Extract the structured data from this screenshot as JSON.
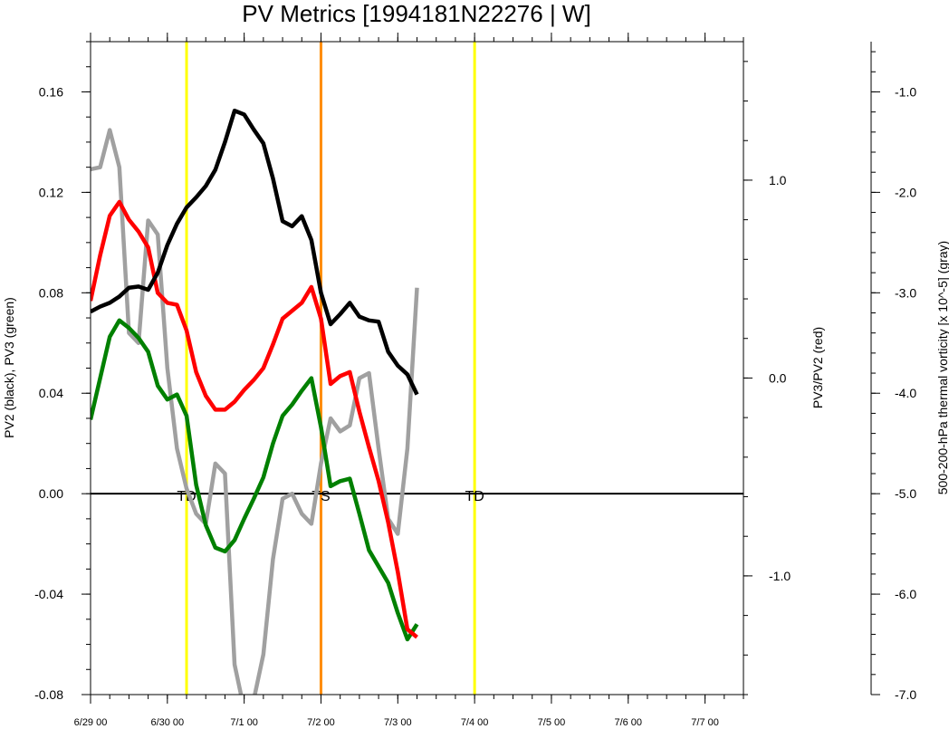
{
  "chart_data": {
    "type": "line",
    "title": "PV Metrics [1994181N22276 | W]",
    "x": [
      0,
      0.125,
      0.25,
      0.375,
      0.5,
      0.625,
      0.75,
      0.875,
      1.0,
      1.125,
      1.25,
      1.375,
      1.5,
      1.625,
      1.75,
      1.875,
      2.0,
      2.125,
      2.25,
      2.375,
      2.5,
      2.625,
      2.75,
      2.875,
      3.0,
      3.125,
      3.25,
      3.375,
      3.5,
      3.625,
      3.75,
      3.875,
      4.0,
      4.125,
      4.25,
      4.375,
      4.5,
      4.625,
      4.75,
      4.875,
      5.0,
      5.125,
      5.25,
      5.375,
      5.5,
      5.625,
      5.75,
      5.875,
      6.0,
      6.125,
      6.25,
      6.375,
      6.5,
      6.625,
      6.75,
      6.875,
      7.0,
      7.125,
      7.25,
      7.375,
      7.5
    ],
    "xlim": [
      0,
      8.5
    ],
    "x_ticks": [
      {
        "value": 0,
        "label": "6/29 00"
      },
      {
        "value": 1,
        "label": "6/30 00"
      },
      {
        "value": 2,
        "label": "7/1 00"
      },
      {
        "value": 3,
        "label": "7/2 00"
      },
      {
        "value": 4,
        "label": "7/3 00"
      },
      {
        "value": 5,
        "label": "7/4 00"
      },
      {
        "value": 6,
        "label": "7/5 00"
      },
      {
        "value": 7,
        "label": "7/6 00"
      },
      {
        "value": 8,
        "label": "7/7 00"
      }
    ],
    "x_minor_step": 0.25,
    "axes": {
      "left": {
        "label": "PV2 (black), PV3 (green)",
        "ylim": [
          -0.08,
          0.18
        ],
        "ticks": [
          {
            "value": -0.08,
            "label": "-0.08"
          },
          {
            "value": -0.04,
            "label": "-0.04"
          },
          {
            "value": 0.0,
            "label": "0.00"
          },
          {
            "value": 0.04,
            "label": "0.04"
          },
          {
            "value": 0.08,
            "label": "0.08"
          },
          {
            "value": 0.12,
            "label": "0.12"
          },
          {
            "value": 0.16,
            "label": "0.16"
          }
        ],
        "minor_step": 0.01
      },
      "right_red": {
        "label": "PV3/PV2 (red)",
        "ylim": [
          -1.6,
          1.7
        ],
        "ticks": [
          {
            "value": -1.0,
            "label": "-1.0"
          },
          {
            "value": 0.0,
            "label": "0.0"
          },
          {
            "value": 1.0,
            "label": "1.0"
          }
        ],
        "minor_step": 0.2
      },
      "right_gray": {
        "label": "500-200-hPa thermal vorticity [x 10^-5] (gray)",
        "ylim": [
          -7.0,
          -0.5
        ],
        "ticks": [
          {
            "value": -7.0,
            "label": "-7.0"
          },
          {
            "value": -6.0,
            "label": "-6.0"
          },
          {
            "value": -5.0,
            "label": "-5.0"
          },
          {
            "value": -4.0,
            "label": "-4.0"
          },
          {
            "value": -3.0,
            "label": "-3.0"
          },
          {
            "value": -2.0,
            "label": "-2.0"
          },
          {
            "value": -1.0,
            "label": "-1.0"
          }
        ],
        "minor_step": 0.2
      }
    },
    "series": [
      {
        "axis": "left",
        "color": "#000000",
        "values": [
          0.0725,
          0.0745,
          0.076,
          0.0785,
          0.082,
          0.0825,
          0.0812,
          0.088,
          0.099,
          0.1075,
          0.114,
          0.118,
          0.1225,
          0.129,
          0.14,
          0.1525,
          0.151,
          0.145,
          0.1395,
          0.1255,
          0.1085,
          0.1065,
          0.1105,
          0.101,
          0.08,
          0.0675,
          0.0715,
          0.076,
          0.0705,
          0.069,
          0.0685,
          0.0565,
          0.051,
          0.0475,
          0.0395,
          null,
          null,
          null,
          null,
          null,
          null,
          null,
          null,
          null,
          null,
          null,
          null,
          null,
          null,
          null,
          null,
          null,
          null,
          null,
          null,
          null,
          null,
          null,
          null,
          null,
          null
        ]
      },
      {
        "axis": "left",
        "color": "#008000",
        "values": [
          0.0295,
          0.046,
          0.0625,
          0.069,
          0.066,
          0.062,
          0.0565,
          0.043,
          0.0375,
          0.0395,
          0.031,
          0.0035,
          -0.0125,
          -0.0215,
          -0.023,
          -0.0185,
          -0.01,
          -0.002,
          0.0065,
          0.02,
          0.031,
          0.0355,
          0.041,
          0.046,
          0.0265,
          0.003,
          0.005,
          0.006,
          -0.008,
          -0.0225,
          -0.029,
          -0.0355,
          -0.0475,
          -0.058,
          -0.052,
          null,
          null,
          null,
          null,
          null,
          null,
          null,
          null,
          null,
          null,
          null,
          null,
          null,
          null,
          null,
          null,
          null,
          null,
          null,
          null,
          null,
          null,
          null,
          null,
          null,
          null
        ]
      },
      {
        "axis": "right_red",
        "color": "#ff0000",
        "values": [
          0.39,
          0.62,
          0.82,
          0.89,
          0.8,
          0.74,
          0.66,
          0.43,
          0.38,
          0.37,
          0.24,
          0.03,
          -0.09,
          -0.16,
          -0.16,
          -0.12,
          -0.06,
          -0.01,
          0.05,
          0.17,
          0.3,
          0.34,
          0.38,
          0.46,
          0.3,
          -0.03,
          0.01,
          0.03,
          -0.17,
          -0.35,
          -0.52,
          -0.73,
          -0.98,
          -1.27,
          -1.31,
          null,
          null,
          null,
          null,
          null,
          null,
          null,
          null,
          null,
          null,
          null,
          null,
          null,
          null,
          null,
          null,
          null,
          null,
          null,
          null,
          null,
          null,
          null,
          null,
          null,
          null
        ]
      },
      {
        "axis": "right_gray",
        "color": "#a0a0a0",
        "values": [
          -1.77,
          -1.75,
          -1.38,
          -1.75,
          -3.4,
          -3.5,
          -2.28,
          -2.42,
          -3.75,
          -4.55,
          -4.95,
          -5.2,
          -5.3,
          -4.7,
          -4.8,
          -6.7,
          -7.15,
          -7.05,
          -6.6,
          -5.65,
          -5.05,
          -5.0,
          -5.2,
          -5.3,
          -4.7,
          -4.25,
          -4.38,
          -4.32,
          -3.85,
          -3.8,
          -4.55,
          -5.25,
          -5.4,
          -4.55,
          -2.95,
          null,
          null,
          null,
          null,
          null,
          null,
          null,
          null,
          null,
          null,
          null,
          null,
          null,
          null,
          null,
          null,
          null,
          null,
          null,
          null,
          null,
          null,
          null,
          null,
          null,
          null
        ]
      }
    ],
    "events": [
      {
        "x": 1.25,
        "label": "TD",
        "color": "#ffff00"
      },
      {
        "x": 3.0,
        "label": "TS",
        "color": "#ff8c00"
      },
      {
        "x": 5.0,
        "label": "TD",
        "color": "#ffff00"
      }
    ],
    "zero_line": {
      "axis": "left",
      "value": 0.0,
      "color": "#000000"
    }
  }
}
